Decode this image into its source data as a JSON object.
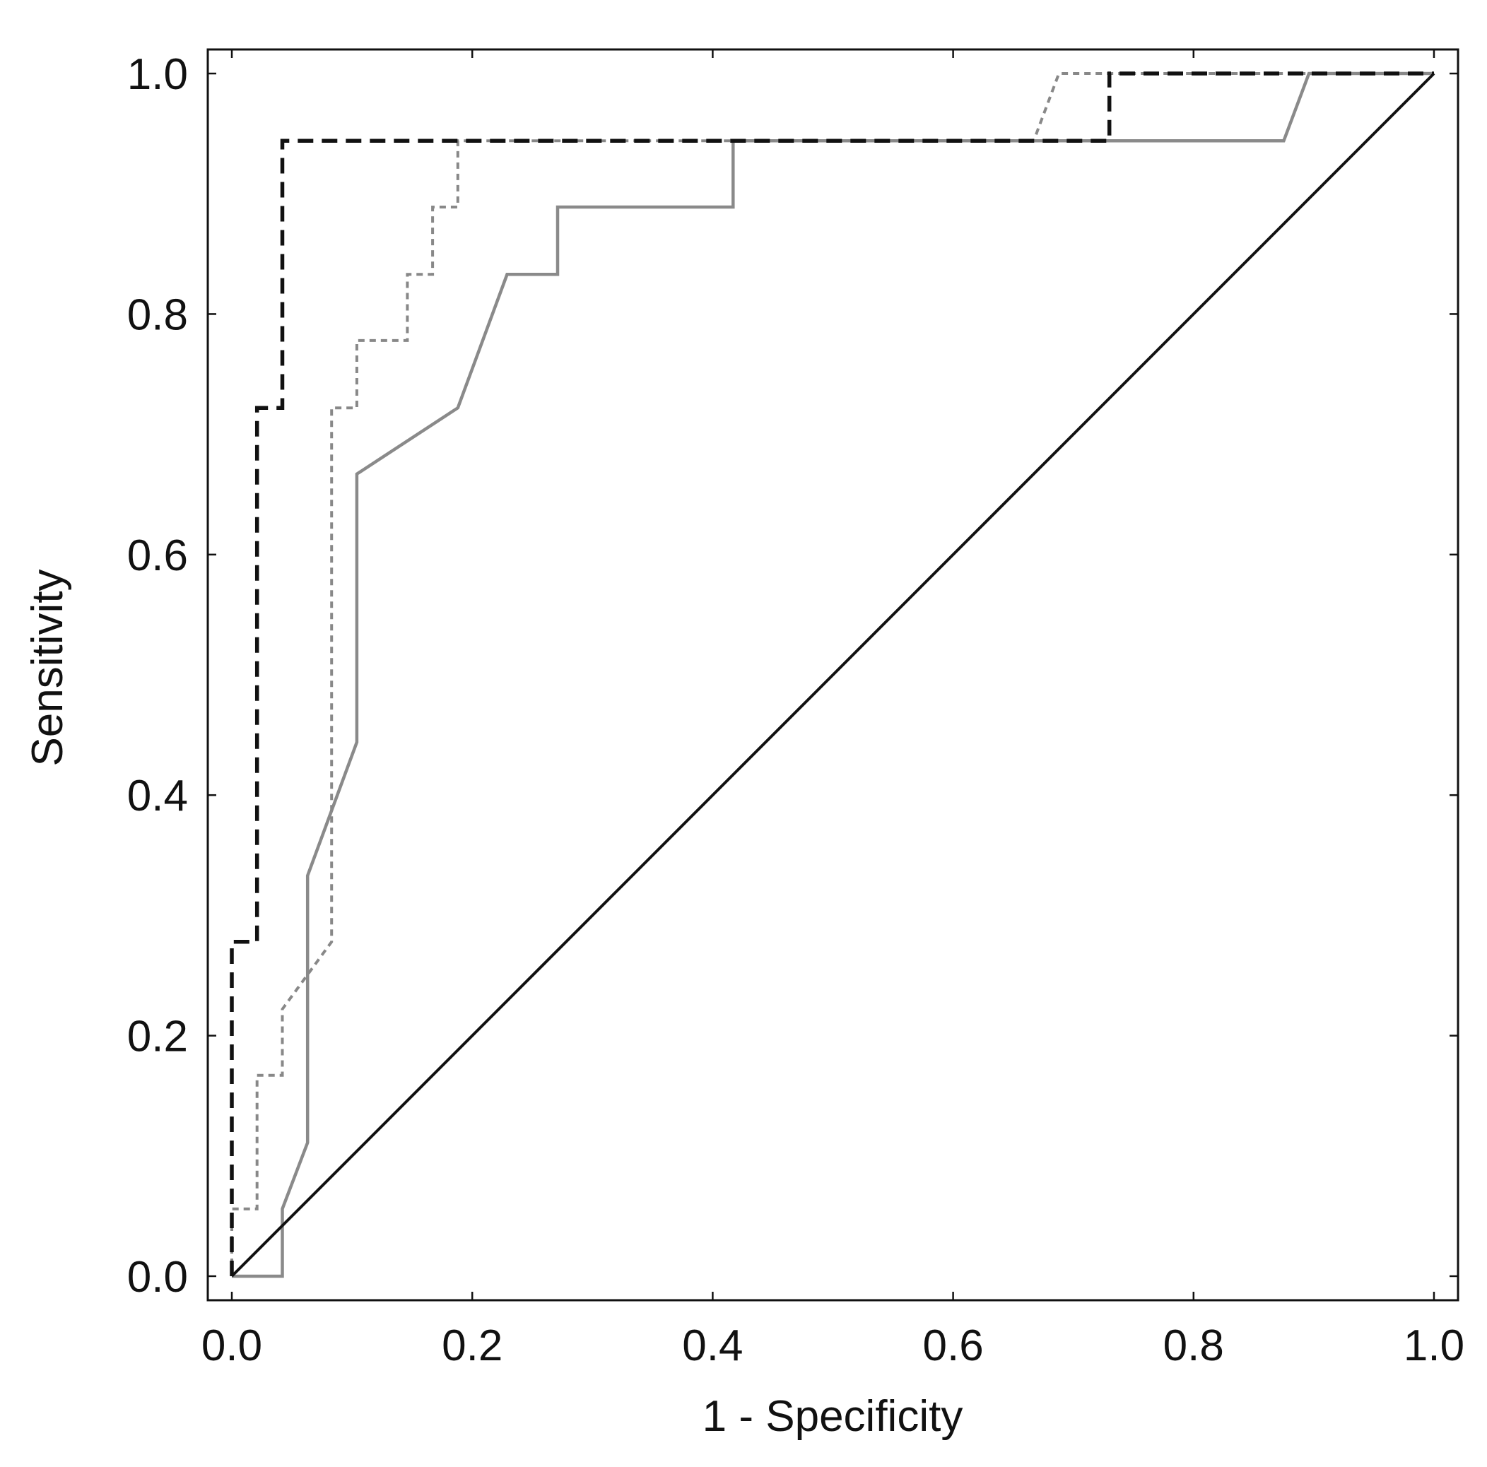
{
  "chart_data": {
    "type": "line",
    "title": "",
    "xlabel": "1 - Specificity",
    "ylabel": "Sensitivity",
    "xlim": [
      -0.02,
      1.02
    ],
    "ylim": [
      -0.02,
      1.02
    ],
    "xticks": [
      "0.0",
      "0.2",
      "0.4",
      "0.6",
      "0.8",
      "1.0"
    ],
    "yticks": [
      "0.0",
      "0.2",
      "0.4",
      "0.6",
      "0.8",
      "1.0"
    ],
    "grid": false,
    "legend": "none",
    "series": [
      {
        "style": "dashed",
        "color": "#111111",
        "points": [
          [
            0,
            0
          ],
          [
            0,
            0.278
          ],
          [
            0.021,
            0.278
          ],
          [
            0.021,
            0.722
          ],
          [
            0.042,
            0.722
          ],
          [
            0.042,
            0.944
          ],
          [
            0.73,
            0.944
          ],
          [
            0.73,
            1.0
          ],
          [
            1.0,
            1.0
          ]
        ]
      },
      {
        "style": "dotted",
        "color": "#888888",
        "points": [
          [
            0,
            0
          ],
          [
            0,
            0.056
          ],
          [
            0.021,
            0.056
          ],
          [
            0.021,
            0.167
          ],
          [
            0.042,
            0.167
          ],
          [
            0.042,
            0.222
          ],
          [
            0.083,
            0.278
          ],
          [
            0.083,
            0.722
          ],
          [
            0.104,
            0.722
          ],
          [
            0.104,
            0.778
          ],
          [
            0.146,
            0.778
          ],
          [
            0.146,
            0.833
          ],
          [
            0.167,
            0.833
          ],
          [
            0.167,
            0.889
          ],
          [
            0.188,
            0.889
          ],
          [
            0.188,
            0.944
          ],
          [
            0.667,
            0.944
          ],
          [
            0.688,
            1.0
          ],
          [
            1.0,
            1.0
          ]
        ]
      },
      {
        "style": "solid",
        "color": "#8a8a8a",
        "points": [
          [
            0,
            0
          ],
          [
            0.042,
            0
          ],
          [
            0.042,
            0.056
          ],
          [
            0.063,
            0.111
          ],
          [
            0.063,
            0.333
          ],
          [
            0.104,
            0.444
          ],
          [
            0.104,
            0.667
          ],
          [
            0.188,
            0.722
          ],
          [
            0.229,
            0.833
          ],
          [
            0.271,
            0.833
          ],
          [
            0.271,
            0.889
          ],
          [
            0.417,
            0.889
          ],
          [
            0.417,
            0.944
          ],
          [
            0.875,
            0.944
          ],
          [
            0.896,
            1.0
          ],
          [
            1.0,
            1.0
          ]
        ]
      },
      {
        "style": "solid",
        "color": "#111111",
        "points": [
          [
            0,
            0
          ],
          [
            1.0,
            1.0
          ]
        ]
      }
    ]
  }
}
